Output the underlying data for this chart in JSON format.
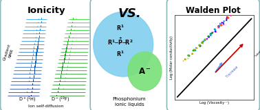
{
  "bg_color": "#e8e8e8",
  "left_title": "Ionicity",
  "left_bottom_label": "Ion self-diffusion",
  "mid_title": "VS.",
  "mid_bottom_text": "Phosphonium\nionic liquids",
  "right_title": "Walden Plot",
  "right_xlabel": "Log (Viscosity⁻¹)",
  "right_ylabel": "Log (Molar conductivity)",
  "border_color": "#8ab0b0",
  "panel_bg": "#ffffff"
}
